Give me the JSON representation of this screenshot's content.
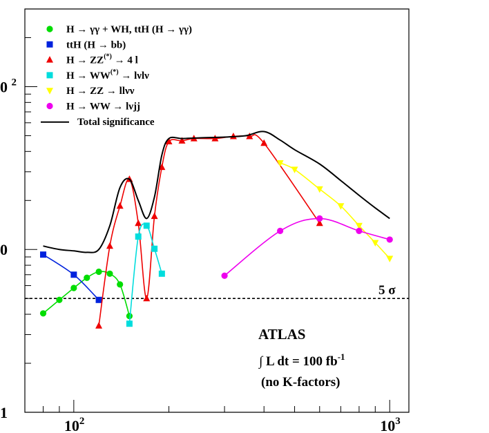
{
  "chart_data": {
    "type": "line",
    "title": "",
    "xlabel": "",
    "ylabel": "",
    "x_scale": "log",
    "y_scale": "log",
    "xlim": [
      70,
      1150
    ],
    "ylim": [
      1,
      300
    ],
    "x_tick_labels": [
      {
        "base": "10",
        "exp": "2"
      },
      {
        "base": "10",
        "exp": "3"
      }
    ],
    "y_tick_labels": [
      {
        "text": "1"
      },
      {
        "text": "0"
      },
      {
        "text": "0 ",
        "exp": "2"
      }
    ],
    "threshold": {
      "value": 5,
      "label": "5 σ"
    },
    "annotation": {
      "experiment": "ATLAS",
      "lumi_prefix": "∫ L dt = 100 fb",
      "lumi_exp": "-1",
      "note": "(no K-factors)"
    },
    "legend_position": "top-left",
    "series": [
      {
        "name": "H → γγ + WH, ttH (H → γγ)",
        "label_parts": [
          "H  →  γγ  +  WH, ttH (H  →  γγ)"
        ],
        "color": "#00dd00",
        "marker": "circle",
        "x": [
          80,
          90,
          100,
          110,
          120,
          130,
          140,
          150
        ],
        "y": [
          4.05,
          4.9,
          5.8,
          6.7,
          7.3,
          7.1,
          6.1,
          3.9
        ]
      },
      {
        "name": "ttH (H → bb)",
        "label_parts": [
          "ttH (H  →  bb)"
        ],
        "color": "#0022dd",
        "marker": "square",
        "x": [
          80,
          100,
          120
        ],
        "y": [
          9.3,
          7.0,
          4.9
        ]
      },
      {
        "name": "H → ZZ(*) → 4 l",
        "label_parts": [
          "H   →  ZZ",
          "(*)",
          "  →  4 l"
        ],
        "color": "#ee0000",
        "marker": "triangle-up",
        "x": [
          120,
          130,
          140,
          150,
          160,
          170,
          180,
          190,
          200,
          220,
          240,
          280,
          320,
          360,
          400,
          600
        ],
        "y": [
          3.4,
          10.5,
          18.5,
          27.0,
          14.5,
          5.0,
          16.0,
          32.0,
          46.0,
          46.5,
          48.0,
          48.0,
          49.5,
          49.5,
          45.0,
          14.5
        ]
      },
      {
        "name": "H → WW(*) → lνlν",
        "label_parts": [
          "H   →  WW",
          "(*)",
          "  →  lνlν"
        ],
        "color": "#00dddd",
        "marker": "square",
        "x": [
          150,
          160,
          170,
          180,
          190
        ],
        "y": [
          3.5,
          12.0,
          14.0,
          10.1,
          7.1
        ]
      },
      {
        "name": "H → ZZ → llνν",
        "label_parts": [
          "H   →  ZZ   →  llνν"
        ],
        "color": "#ffff00",
        "marker": "triangle-down",
        "x": [
          450,
          500,
          600,
          700,
          800,
          900,
          1000
        ],
        "y": [
          34.0,
          31.0,
          23.5,
          18.5,
          14.0,
          11.0,
          8.8
        ]
      },
      {
        "name": "H → WW → lνjj",
        "label_parts": [
          "H   →  WW   →  lνjj"
        ],
        "color": "#ee00ee",
        "marker": "circle",
        "x": [
          300,
          450,
          600,
          800,
          1000
        ],
        "y": [
          6.9,
          13.0,
          15.5,
          13.0,
          11.5
        ]
      },
      {
        "name": "Total significance",
        "label_parts": [
          "Total significance"
        ],
        "color": "#000000",
        "marker": "none",
        "x": [
          80,
          90,
          100,
          110,
          120,
          130,
          140,
          150,
          160,
          170,
          180,
          190,
          200,
          220,
          250,
          300,
          350,
          400,
          450,
          500,
          600,
          700,
          800,
          900,
          1000
        ],
        "y": [
          10.5,
          10.0,
          9.8,
          9.6,
          10.0,
          14.0,
          24.0,
          27.0,
          20.0,
          15.5,
          21.0,
          38.0,
          48.0,
          48.0,
          48.5,
          49.0,
          50.0,
          53.0,
          47.0,
          41.0,
          33.5,
          26.5,
          21.5,
          18.0,
          15.5
        ]
      }
    ]
  }
}
